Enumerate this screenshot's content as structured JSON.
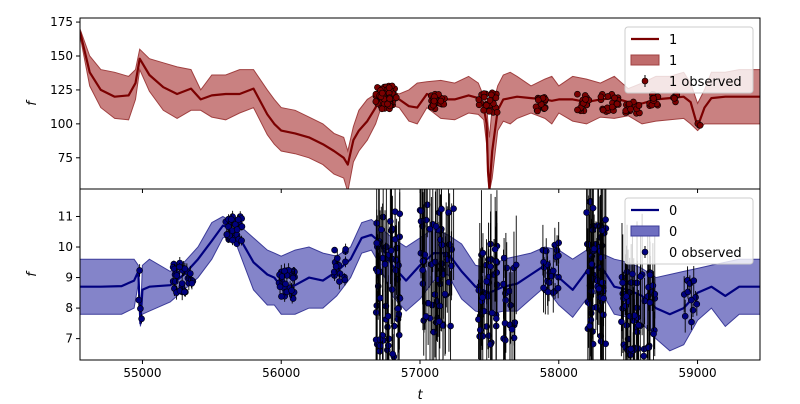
{
  "chart_data": [
    {
      "type": "line",
      "panel": "top",
      "xlabel": "",
      "ylabel": "f",
      "xlim": [
        54550,
        59450
      ],
      "ylim": [
        52,
        178
      ],
      "yticks": [
        75,
        100,
        125,
        150,
        175
      ],
      "xticks": [
        55000,
        56000,
        57000,
        58000,
        59000
      ],
      "grid": false,
      "legend_position": "top-right",
      "colors": {
        "line": "#7b0000",
        "band": "#bf6b6b",
        "band_edge": "#a04040",
        "points": "#7b0000"
      },
      "legend": [
        {
          "kind": "line",
          "label": "1"
        },
        {
          "kind": "band",
          "label": "1"
        },
        {
          "kind": "errorbar",
          "label": "1 observed"
        }
      ],
      "series": [
        {
          "kind": "line",
          "x": [
            54550,
            54620,
            54700,
            54800,
            54900,
            54950,
            54980,
            55050,
            55150,
            55250,
            55350,
            55420,
            55500,
            55600,
            55700,
            55800,
            55900,
            55950,
            56000,
            56100,
            56200,
            56300,
            56380,
            56450,
            56480,
            56520,
            56560,
            56620,
            56680,
            56720,
            56780,
            56850,
            56920,
            56980,
            57050,
            57150,
            57250,
            57350,
            57420,
            57460,
            57480,
            57490,
            57500,
            57520,
            57560,
            57600,
            57650,
            57700,
            57800,
            57900,
            57950,
            58000,
            58100,
            58200,
            58300,
            58400,
            58500,
            58600,
            58700,
            58800,
            58900,
            58950,
            59000,
            59050,
            59100,
            59200,
            59300,
            59450
          ],
          "y": [
            168,
            138,
            125,
            120,
            121,
            130,
            148,
            136,
            127,
            122,
            126,
            118,
            121,
            122,
            122,
            126,
            107,
            100,
            95,
            93,
            90,
            85,
            80,
            75,
            70,
            88,
            95,
            102,
            112,
            122,
            121,
            118,
            113,
            112,
            122,
            118,
            118,
            121,
            119,
            112,
            100,
            65,
            52,
            80,
            110,
            118,
            119,
            120,
            119,
            118,
            117,
            118,
            118,
            116,
            118,
            119,
            116,
            115,
            118,
            119,
            120,
            116,
            98,
            112,
            119,
            120,
            120,
            120
          ]
        },
        {
          "kind": "band",
          "x": [
            54550,
            54620,
            54700,
            54800,
            54900,
            54950,
            54980,
            55050,
            55150,
            55250,
            55350,
            55420,
            55500,
            55600,
            55700,
            55800,
            55900,
            55950,
            56000,
            56100,
            56200,
            56300,
            56380,
            56450,
            56480,
            56520,
            56560,
            56620,
            56680,
            56720,
            56780,
            56850,
            56920,
            56980,
            57050,
            57150,
            57250,
            57350,
            57420,
            57460,
            57480,
            57490,
            57500,
            57520,
            57560,
            57600,
            57650,
            57700,
            57800,
            57900,
            57950,
            58000,
            58100,
            58200,
            58300,
            58400,
            58500,
            58600,
            58700,
            58800,
            58900,
            58950,
            59000,
            59050,
            59100,
            59200,
            59300,
            59450
          ],
          "upper": [
            170,
            150,
            140,
            138,
            135,
            140,
            155,
            148,
            145,
            142,
            140,
            125,
            136,
            136,
            140,
            140,
            125,
            118,
            112,
            110,
            105,
            100,
            93,
            90,
            80,
            98,
            110,
            118,
            122,
            125,
            124,
            122,
            125,
            130,
            131,
            132,
            130,
            135,
            130,
            120,
            115,
            100,
            90,
            112,
            128,
            136,
            138,
            135,
            128,
            133,
            135,
            128,
            135,
            133,
            130,
            135,
            126,
            130,
            135,
            135,
            138,
            130,
            115,
            125,
            138,
            138,
            140,
            140
          ],
          "lower": [
            165,
            128,
            112,
            104,
            103,
            118,
            140,
            124,
            110,
            104,
            110,
            110,
            105,
            103,
            108,
            112,
            92,
            85,
            80,
            78,
            75,
            70,
            63,
            60,
            50,
            72,
            80,
            88,
            100,
            112,
            114,
            112,
            102,
            100,
            112,
            104,
            103,
            108,
            107,
            103,
            85,
            60,
            50,
            60,
            95,
            102,
            100,
            104,
            108,
            104,
            100,
            108,
            102,
            100,
            105,
            104,
            106,
            100,
            102,
            103,
            104,
            100,
            95,
            100,
            100,
            100,
            100,
            100
          ]
        },
        {
          "kind": "points",
          "clusters": [
            {
              "x_range": [
                56680,
                56830
              ],
              "y_range": [
                111,
                128
              ],
              "n": 70
            },
            {
              "x_range": [
                57070,
                57180
              ],
              "y_range": [
                111,
                122
              ],
              "n": 24
            },
            {
              "x_range": [
                57420,
                57560
              ],
              "y_range": [
                108,
                123
              ],
              "n": 26
            },
            {
              "x_range": [
                57830,
                57920
              ],
              "y_range": [
                109,
                120
              ],
              "n": 18
            },
            {
              "x_range": [
                58130,
                58220
              ],
              "y_range": [
                108,
                122
              ],
              "n": 18
            },
            {
              "x_range": [
                58300,
                58430
              ],
              "y_range": [
                109,
                122
              ],
              "n": 24
            },
            {
              "x_range": [
                58480,
                58600
              ],
              "y_range": [
                107,
                117
              ],
              "n": 16
            },
            {
              "x_range": [
                58650,
                58720
              ],
              "y_range": [
                113,
                122
              ],
              "n": 12
            },
            {
              "x_range": [
                58820,
                58860
              ],
              "y_range": [
                116,
                122
              ],
              "n": 6
            },
            {
              "x_range": [
                58990,
                59020
              ],
              "y_range": [
                97,
                101
              ],
              "n": 3
            }
          ]
        }
      ]
    },
    {
      "type": "line",
      "panel": "bottom",
      "xlabel": "t",
      "ylabel": "f",
      "xlim": [
        54550,
        59450
      ],
      "ylim": [
        6.3,
        11.9
      ],
      "yticks": [
        7,
        8,
        9,
        10,
        11
      ],
      "xticks": [
        55000,
        56000,
        57000,
        58000,
        59000
      ],
      "grid": false,
      "legend_position": "top-right",
      "colors": {
        "line": "#00007f",
        "band": "#6e6ec0",
        "band_edge": "#3c3c9a",
        "points": "#00007f"
      },
      "legend": [
        {
          "kind": "line",
          "label": "0"
        },
        {
          "kind": "band",
          "label": "0"
        },
        {
          "kind": "errorbar",
          "label": "0 observed"
        }
      ],
      "series": [
        {
          "kind": "line",
          "x": [
            54550,
            54700,
            54850,
            54940,
            54970,
            54985,
            55000,
            55050,
            55200,
            55300,
            55400,
            55500,
            55580,
            55650,
            55700,
            55800,
            55900,
            55950,
            56000,
            56100,
            56200,
            56300,
            56400,
            56500,
            56580,
            56650,
            56700,
            56800,
            56900,
            57000,
            57100,
            57200,
            57300,
            57400,
            57500,
            57600,
            57700,
            57800,
            57900,
            58000,
            58100,
            58200,
            58300,
            58400,
            58500,
            58600,
            58700,
            58800,
            58900,
            59000,
            59100,
            59200,
            59300,
            59450
          ],
          "y": [
            8.7,
            8.7,
            8.72,
            8.9,
            9.2,
            7.5,
            8.6,
            8.7,
            8.75,
            9.1,
            9.6,
            10.2,
            10.7,
            10.6,
            10.3,
            9.5,
            9.1,
            9.0,
            8.7,
            8.75,
            9.0,
            8.9,
            9.2,
            9.6,
            10.3,
            10.4,
            10.2,
            9.4,
            8.9,
            9.4,
            9.8,
            9.8,
            9.2,
            8.7,
            8.5,
            8.7,
            8.8,
            9.1,
            9.4,
            9.0,
            8.6,
            9.2,
            9.4,
            8.7,
            8.6,
            8.4,
            8.0,
            7.8,
            8.0,
            8.5,
            8.7,
            8.4,
            8.7,
            8.7
          ]
        },
        {
          "kind": "band",
          "x": [
            54550,
            54700,
            54850,
            54940,
            54970,
            54985,
            55000,
            55050,
            55200,
            55300,
            55400,
            55500,
            55580,
            55650,
            55700,
            55800,
            55900,
            55950,
            56000,
            56100,
            56200,
            56300,
            56400,
            56500,
            56580,
            56650,
            56700,
            56800,
            56900,
            57000,
            57100,
            57200,
            57300,
            57400,
            57500,
            57600,
            57700,
            57800,
            57900,
            58000,
            58100,
            58200,
            58300,
            58400,
            58500,
            58600,
            58700,
            58800,
            58900,
            59000,
            59100,
            59200,
            59300,
            59450
          ],
          "upper": [
            9.6,
            9.6,
            9.6,
            9.6,
            9.4,
            7.6,
            9.4,
            9.6,
            9.2,
            9.5,
            10.0,
            10.8,
            11.0,
            10.8,
            10.7,
            10.3,
            9.9,
            9.8,
            9.7,
            9.9,
            10.0,
            9.8,
            9.7,
            10.0,
            10.8,
            10.9,
            10.7,
            10.3,
            10.0,
            10.3,
            10.6,
            10.4,
            10.1,
            9.4,
            9.3,
            9.6,
            9.7,
            9.8,
            10.0,
            9.9,
            9.6,
            9.9,
            9.8,
            9.6,
            9.5,
            9.3,
            9.0,
            9.1,
            9.2,
            9.3,
            9.4,
            9.5,
            9.6,
            9.6
          ],
          "lower": [
            7.8,
            7.8,
            7.8,
            8.0,
            8.8,
            7.4,
            7.8,
            7.9,
            8.2,
            8.6,
            9.0,
            9.6,
            10.3,
            10.4,
            9.8,
            8.6,
            8.1,
            8.1,
            7.8,
            7.8,
            8.0,
            8.0,
            8.4,
            9.0,
            9.8,
            9.9,
            9.5,
            8.4,
            7.9,
            8.3,
            8.9,
            9.1,
            8.3,
            7.9,
            7.8,
            7.9,
            7.9,
            8.3,
            8.7,
            8.1,
            7.7,
            8.3,
            8.6,
            7.8,
            7.7,
            7.5,
            7.0,
            6.6,
            6.8,
            7.6,
            8.0,
            7.4,
            7.8,
            7.8
          ]
        },
        {
          "kind": "points",
          "clusters": [
            {
              "x_range": [
                54960,
                54995
              ],
              "y_range": [
                7.4,
                9.4
              ],
              "n": 4,
              "err": 0.15
            },
            {
              "x_range": [
                55220,
                55370
              ],
              "y_range": [
                8.5,
                9.5
              ],
              "n": 30,
              "err": 0.2
            },
            {
              "x_range": [
                55580,
                55720
              ],
              "y_range": [
                10.1,
                11.0
              ],
              "n": 30,
              "err": 0.15
            },
            {
              "x_range": [
                55970,
                56100
              ],
              "y_range": [
                8.3,
                9.3
              ],
              "n": 30,
              "err": 0.2
            },
            {
              "x_range": [
                56380,
                56520
              ],
              "y_range": [
                8.8,
                10.0
              ],
              "n": 14,
              "err": 0.2
            },
            {
              "x_range": [
                56680,
                56860
              ],
              "y_range": [
                6.4,
                11.3
              ],
              "n": 60,
              "err": 1.8
            },
            {
              "x_range": [
                57000,
                57250
              ],
              "y_range": [
                7.2,
                11.5
              ],
              "n": 55,
              "err": 1.8
            },
            {
              "x_range": [
                57420,
                57560
              ],
              "y_range": [
                6.8,
                10.2
              ],
              "n": 40,
              "err": 1.6
            },
            {
              "x_range": [
                57600,
                57700
              ],
              "y_range": [
                6.9,
                9.8
              ],
              "n": 20,
              "err": 1.5
            },
            {
              "x_range": [
                57880,
                58000
              ],
              "y_range": [
                8.3,
                10.2
              ],
              "n": 22,
              "err": 0.6
            },
            {
              "x_range": [
                58200,
                58340
              ],
              "y_range": [
                6.8,
                11.5
              ],
              "n": 60,
              "err": 1.8
            },
            {
              "x_range": [
                58450,
                58700
              ],
              "y_range": [
                6.3,
                9.2
              ],
              "n": 60,
              "err": 1.5
            },
            {
              "x_range": [
                58900,
                59000
              ],
              "y_range": [
                7.3,
                9.0
              ],
              "n": 12,
              "err": 0.5
            }
          ]
        }
      ]
    }
  ]
}
